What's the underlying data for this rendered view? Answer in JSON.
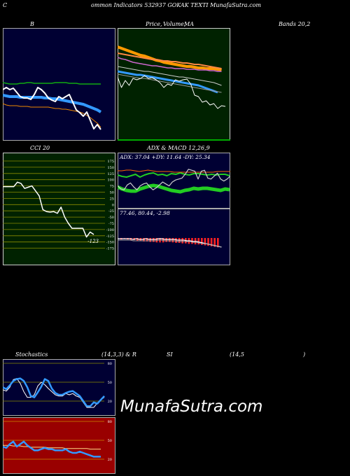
{
  "header": {
    "letter": "C",
    "text": "ommon  Indicators 532937 GOKAK TEXTI MunafaSutra.com"
  },
  "labels": {
    "bb": "B",
    "price": "Price,",
    "volume": "Volume,",
    "ma": "MA",
    "bands": "Bands 20,2",
    "cci": "CCI 20",
    "adx": "ADX  & MACD 12,26,9",
    "stoch": "Stochastics",
    "stoch_params": "(14,3,3) & R",
    "si": "SI",
    "rsi_params": "(14,5",
    "rsi_close": ")"
  },
  "brand": "MunafaSutra.com",
  "colors": {
    "navy": "#000033",
    "dark_green": "#002200",
    "dark_red": "#990000",
    "grid_green": "#8b8b00",
    "blue": "#3399ff",
    "green": "#11aa11",
    "orange": "#ee8800",
    "white": "#ffffff"
  },
  "chart_data": [
    {
      "type": "line",
      "panel": "bollinger",
      "series": [
        {
          "values": [
            78,
            79,
            80,
            80,
            80,
            79,
            79,
            78,
            78,
            79,
            79,
            79,
            79,
            79,
            79,
            78,
            78,
            78,
            78,
            79,
            79,
            79,
            80,
            80,
            80,
            80,
            80,
            80,
            80
          ]
        },
        {
          "values": [
            96,
            97,
            98,
            98,
            98,
            99,
            99,
            99,
            99,
            99,
            99,
            99,
            100,
            100,
            101,
            101,
            102,
            103,
            104,
            105,
            106,
            107,
            108,
            109,
            111,
            113,
            115,
            117,
            120
          ]
        },
        {
          "values": [
            108,
            110,
            111,
            111,
            111,
            112,
            112,
            112,
            113,
            113,
            113,
            113,
            113,
            113,
            114,
            115,
            115,
            116,
            116,
            117,
            118,
            119,
            120,
            122,
            125,
            128,
            132,
            136,
            142
          ]
        },
        {
          "values": [
            88,
            85,
            88,
            86,
            92,
            98,
            100,
            100,
            102,
            95,
            85,
            88,
            93,
            100,
            103,
            105,
            98,
            101,
            98,
            95,
            106,
            117,
            121,
            126,
            120,
            132,
            144,
            138,
            145
          ]
        }
      ]
    },
    {
      "type": "line",
      "panel": "price-ma",
      "series": [
        {
          "values": [
            27,
            29,
            31,
            33,
            35,
            37,
            39,
            40,
            42,
            44,
            46,
            47,
            49,
            50,
            51,
            52,
            53,
            54,
            55,
            55,
            56,
            57,
            57,
            58,
            58,
            58,
            59,
            60
          ]
        },
        {
          "values": [
            36,
            37,
            38,
            39,
            40,
            41,
            42,
            43,
            44,
            45,
            45,
            46,
            47,
            47,
            48,
            48,
            49,
            50,
            50,
            51,
            52,
            52,
            53,
            54,
            55,
            56,
            57,
            58
          ]
        },
        {
          "values": [
            42,
            44,
            45,
            47,
            49,
            50,
            51,
            52,
            53,
            54,
            54,
            55,
            56,
            57,
            57,
            58,
            58,
            58,
            59,
            59,
            59,
            60,
            60,
            60,
            61,
            61,
            62,
            62
          ]
        },
        {
          "values": [
            55,
            56,
            57,
            58,
            59,
            60,
            61,
            62,
            62,
            63,
            64,
            65,
            66,
            67,
            68,
            69,
            70,
            70,
            71,
            72,
            73,
            74,
            75,
            76,
            77,
            78,
            80,
            82
          ]
        },
        {
          "values": [
            62,
            63,
            64,
            65,
            66,
            67,
            67,
            68,
            69,
            70,
            71,
            72,
            73,
            74,
            75,
            76,
            77,
            78,
            79,
            80,
            81,
            82,
            84,
            86,
            88,
            90,
            92
          ]
        },
        {
          "values": [
            66,
            67,
            68,
            69,
            70,
            71,
            72,
            72,
            73,
            74,
            75,
            76,
            77,
            78,
            79,
            80,
            81,
            82,
            83,
            84,
            85,
            86,
            87,
            88,
            89,
            90,
            91,
            92
          ]
        },
        {
          "values": [
            70,
            85,
            75,
            82,
            72,
            74,
            72,
            68,
            72,
            71,
            74,
            78,
            85,
            80,
            82,
            74,
            76,
            74,
            73,
            80,
            96,
            98,
            106,
            104,
            110,
            108,
            115,
            111,
            112
          ]
        }
      ]
    },
    {
      "type": "line",
      "panel": "cci",
      "y_ticks": [
        175,
        150,
        125,
        100,
        75,
        50,
        25,
        0,
        -25,
        -50,
        -75,
        -100,
        -125,
        -150,
        -175
      ],
      "current_label": "-123",
      "series": [
        {
          "values": [
            72,
            72,
            72,
            72,
            90,
            85,
            65,
            70,
            75,
            55,
            35,
            -20,
            -28,
            -30,
            -28,
            -35,
            -10,
            -50,
            -75,
            -95,
            -95,
            -95,
            -95,
            -130,
            -110,
            -120
          ]
        }
      ]
    },
    {
      "type": "line",
      "panel": "adx",
      "text": "ADX: 37.04  +DY: 11.64  -DY: 25.34",
      "series": [
        {
          "values": [
            49,
            52,
            54,
            55,
            55,
            52,
            50,
            48,
            47,
            48,
            50,
            52,
            54,
            55,
            56,
            54,
            53,
            51,
            52,
            51,
            51,
            52,
            53,
            54,
            52,
            53
          ]
        },
        {
          "values": [
            32,
            34,
            35,
            33,
            31,
            35,
            32,
            30,
            29,
            32,
            31,
            33,
            30,
            31,
            29,
            31,
            32,
            30,
            30,
            31,
            32,
            31,
            32,
            31,
            31,
            33
          ]
        },
        {
          "values": [
            26,
            26,
            25,
            25,
            26,
            27,
            26,
            25,
            26,
            27,
            27,
            27,
            27,
            28,
            28,
            28,
            28,
            28,
            28,
            28,
            28,
            28,
            28,
            27,
            27,
            27,
            27
          ]
        },
        {
          "values": [
            34,
            37,
            38,
            33,
            31,
            35,
            38,
            34,
            32,
            31,
            35,
            38,
            36,
            33,
            30,
            32,
            34,
            30,
            28,
            27,
            26,
            22,
            17,
            18,
            19,
            27,
            19,
            18,
            26,
            27,
            24,
            21,
            27,
            29,
            27,
            24
          ]
        }
      ]
    },
    {
      "type": "bar",
      "panel": "macd",
      "text": "77.46,  80.44,  -2.98",
      "series": [
        {
          "values": [
            -3,
            -2,
            -3,
            -4,
            -4,
            -5,
            -6,
            -7,
            -7,
            -8,
            -8,
            -9,
            -9,
            -9,
            -8,
            -8,
            -9,
            -10,
            -10,
            -11,
            -11,
            -12,
            -12,
            -13,
            -13,
            -14,
            -15,
            -16,
            -17,
            -18,
            -19
          ]
        },
        {
          "values": [
            1,
            1,
            1,
            1,
            1,
            2,
            1,
            2,
            2,
            1,
            2,
            2,
            2,
            1,
            1,
            2,
            2,
            2,
            2,
            3,
            3,
            3,
            4,
            4,
            5,
            5,
            6,
            7,
            8,
            9,
            10,
            11,
            12,
            13
          ]
        },
        {
          "values": [
            1,
            1,
            1,
            1,
            1,
            2,
            2,
            2,
            2,
            2,
            2,
            2,
            2,
            1,
            1,
            2,
            2,
            2,
            2,
            3,
            3,
            3,
            3,
            3,
            4,
            4,
            5,
            6,
            6,
            7,
            8,
            9,
            10,
            11
          ]
        }
      ]
    },
    {
      "type": "line",
      "panel": "stochastics",
      "y_ticks": [
        80,
        50,
        20
      ],
      "series": [
        {
          "values": [
            38,
            36,
            42,
            54,
            56,
            48,
            35,
            26,
            26,
            30,
            44,
            50,
            46,
            40,
            35,
            30,
            28,
            28,
            32,
            30,
            32,
            28,
            26,
            18,
            10,
            10,
            10,
            17,
            22,
            26
          ]
        },
        {
          "values": [
            42,
            39,
            45,
            52,
            55,
            56,
            52,
            42,
            28,
            26,
            34,
            43,
            55,
            52,
            40,
            33,
            30,
            30,
            33,
            35,
            36,
            32,
            28,
            20,
            12,
            12,
            18,
            16,
            22,
            28
          ]
        }
      ]
    },
    {
      "type": "line",
      "panel": "rsi",
      "y_ticks": [
        80,
        50,
        20
      ],
      "series": [
        {
          "values": [
            42,
            42,
            42,
            41,
            41,
            41,
            40,
            40,
            39,
            39,
            39,
            39,
            39,
            38,
            38,
            38,
            38,
            38,
            37,
            37,
            37,
            37,
            37,
            37,
            37,
            36,
            36,
            36,
            36
          ]
        },
        {
          "values": [
            40,
            38,
            44,
            48,
            40,
            44,
            48,
            42,
            38,
            34,
            34,
            36,
            38,
            36,
            36,
            34,
            34,
            34,
            36,
            32,
            30,
            30,
            32,
            30,
            28,
            26,
            24,
            24,
            24
          ]
        }
      ]
    }
  ]
}
